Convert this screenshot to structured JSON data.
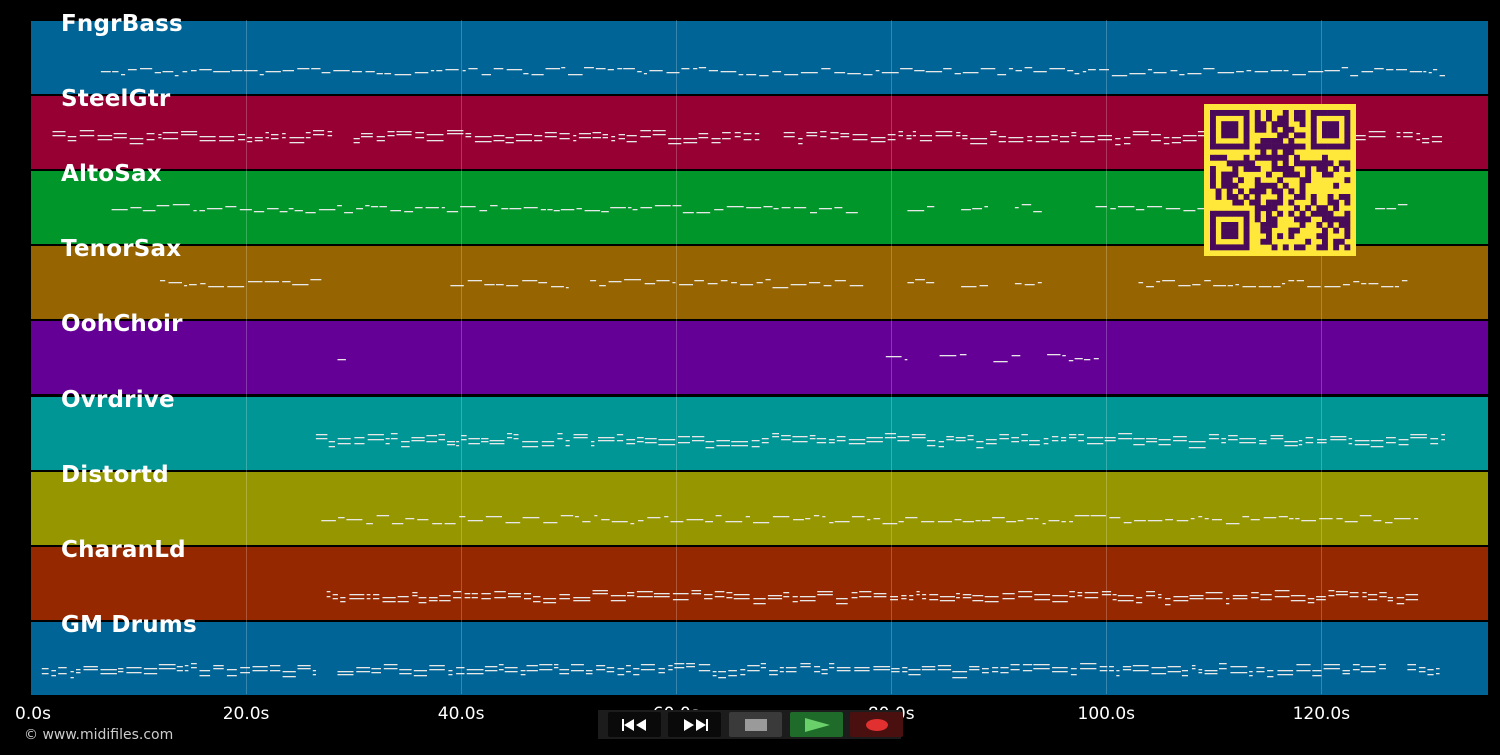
{
  "tracks": [
    {
      "name": "FngrBass",
      "color": "#006496"
    },
    {
      "name": "SteelGtr",
      "color": "#960032"
    },
    {
      "name": "AltoSax",
      "color": "#00962a"
    },
    {
      "name": "TenorSax",
      "color": "#966400"
    },
    {
      "name": "OohChoir",
      "color": "#640096"
    },
    {
      "name": "Ovrdrive",
      "color": "#009696"
    },
    {
      "name": "Distortd",
      "color": "#969600"
    },
    {
      "name": "CharanLd",
      "color": "#962800"
    },
    {
      "name": "GM Drums",
      "color": "#006496"
    }
  ],
  "timeline": {
    "ticks": [
      "0.0s",
      "20.0s",
      "40.0s",
      "60.0s",
      "80.0s",
      "100.0s",
      "120.0s"
    ],
    "tick_values": [
      0,
      20,
      40,
      60,
      80,
      100,
      120
    ],
    "max_seconds": 135.5
  },
  "transport": {
    "rewind_icon": "rewind-icon",
    "forward_icon": "fast-forward-icon",
    "stop_icon": "stop-icon",
    "play_icon": "play-icon",
    "record_icon": "record-icon"
  },
  "footer": {
    "copyright": "© www.midifiles.com"
  },
  "colors": {
    "background": "#000000",
    "qr_fg": "#4a0a5a",
    "qr_bg": "#ffe83a"
  }
}
